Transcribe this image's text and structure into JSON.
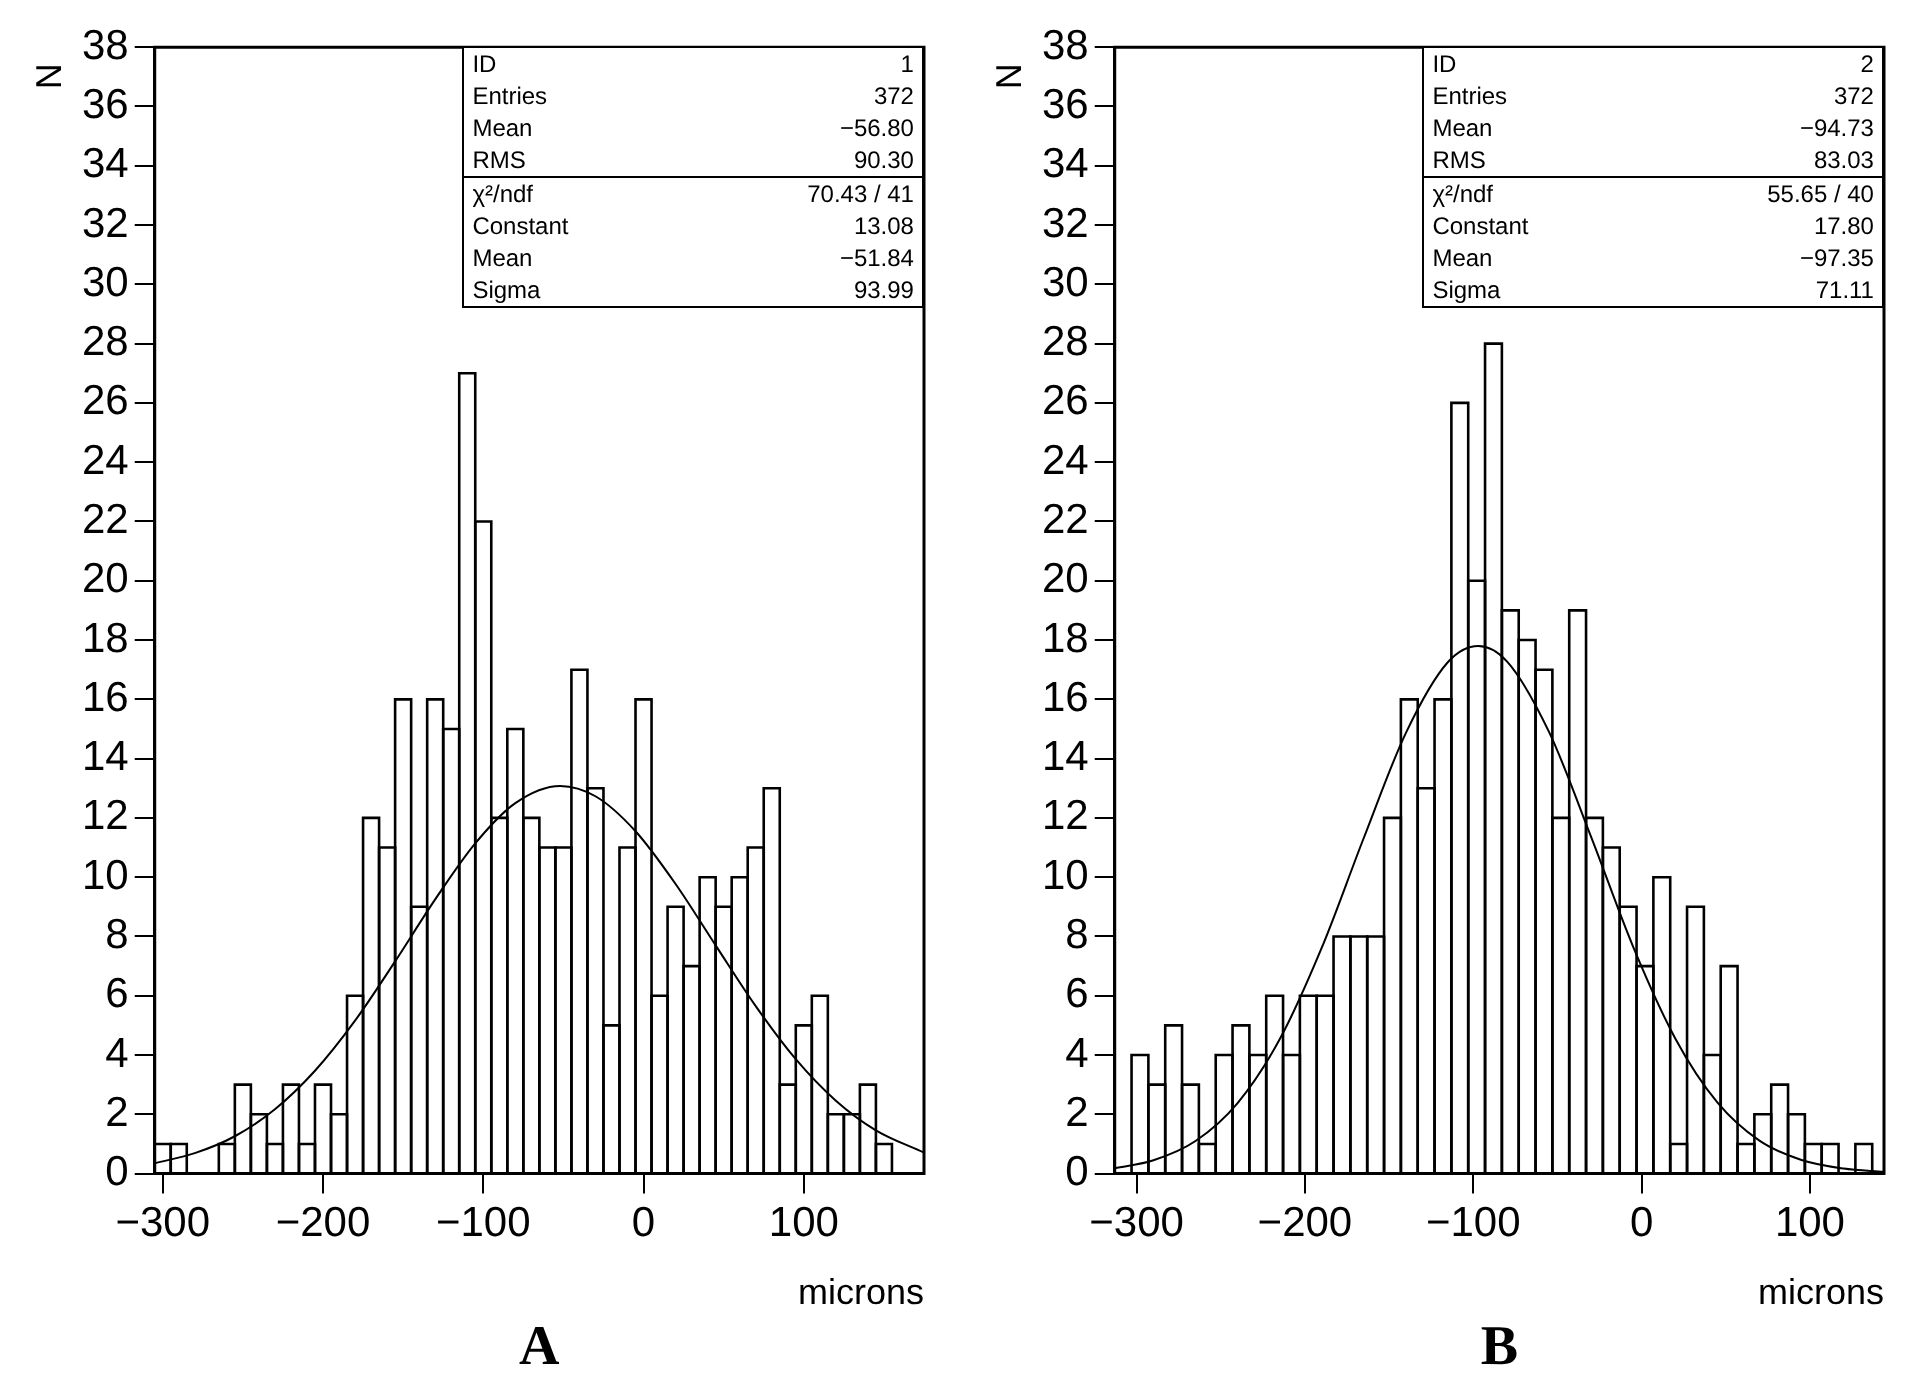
{
  "chart_data": [
    {
      "type": "histogram",
      "title": "A",
      "xlabel": "microns",
      "ylabel": "N",
      "color": "#000000",
      "bins": [
        -305,
        -295,
        -285,
        -275,
        -265,
        -255,
        -245,
        -235,
        -225,
        -215,
        -205,
        -195,
        -185,
        -175,
        -165,
        -155,
        -145,
        -135,
        -125,
        -115,
        -105,
        -95,
        -85,
        -75,
        -65,
        -55,
        -45,
        -35,
        -25,
        -15,
        -5,
        5,
        15,
        25,
        35,
        45,
        55,
        65,
        75,
        85,
        95,
        105,
        115,
        125,
        135,
        145,
        155,
        165,
        175
      ],
      "values": [
        1,
        1,
        0,
        0,
        1,
        3,
        2,
        1,
        3,
        1,
        3,
        2,
        6,
        12,
        11,
        16,
        9,
        16,
        15,
        27,
        22,
        12,
        15,
        12,
        11,
        11,
        17,
        13,
        5,
        11,
        16,
        6,
        9,
        7,
        10,
        9,
        10,
        11,
        13,
        3,
        5,
        6,
        2,
        2,
        3,
        1,
        0,
        0
      ],
      "series": [
        {
          "type": "line",
          "color": "#000000",
          "x": [
            -305,
            -280,
            -255,
            -230,
            -205,
            -180,
            -155,
            -130,
            -105,
            -80,
            -52,
            -30,
            -5,
            20,
            45,
            70,
            95,
            120,
            145,
            175
          ],
          "values": [
            0.35,
            0.69,
            1.26,
            2.17,
            3.47,
            5.16,
            7.16,
            9.25,
            11.14,
            12.5,
            13.08,
            12.73,
            11.55,
            9.77,
            7.7,
            5.65,
            3.86,
            2.46,
            1.46,
            0.71
          ]
        }
      ],
      "xlim": [
        -305,
        175
      ],
      "xticks": [
        -300,
        -200,
        -100,
        0,
        100
      ],
      "ylim": [
        0,
        38
      ],
      "yticks": [
        0,
        2,
        4,
        6,
        8,
        10,
        12,
        14,
        16,
        18,
        20,
        22,
        24,
        26,
        28,
        30,
        32,
        34,
        36,
        38
      ],
      "annotations": [
        "ID 1",
        "Entries 372",
        "Mean −56.80",
        "RMS 90.30",
        "χ²/ndf 70.43 / 41",
        "Constant 13.08",
        "Mean −51.84",
        "Sigma 93.99"
      ]
    },
    {
      "type": "histogram",
      "title": "B",
      "xlabel": "microns",
      "ylabel": "N",
      "color": "#000000",
      "bins": [
        -313,
        -303,
        -293,
        -283,
        -273,
        -263,
        -253,
        -243,
        -233,
        -223,
        -213,
        -203,
        -193,
        -183,
        -173,
        -163,
        -153,
        -143,
        -133,
        -123,
        -113,
        -103,
        -93,
        -83,
        -73,
        -63,
        -53,
        -43,
        -33,
        -23,
        -13,
        -3,
        7,
        17,
        27,
        37,
        47,
        57,
        67,
        77,
        87,
        97,
        107,
        117,
        127,
        137
      ],
      "values": [
        0,
        4,
        3,
        5,
        3,
        1,
        4,
        5,
        4,
        6,
        4,
        6,
        6,
        8,
        8,
        8,
        12,
        16,
        13,
        16,
        26,
        20,
        28,
        19,
        18,
        17,
        12,
        19,
        12,
        11,
        9,
        7,
        10,
        1,
        9,
        4,
        7,
        1,
        2,
        3,
        2,
        1,
        1,
        0,
        1
      ],
      "series": [
        {
          "type": "line",
          "color": "#000000",
          "x": [
            -313,
            -290,
            -265,
            -240,
            -215,
            -190,
            -165,
            -140,
            -115,
            -97,
            -80,
            -55,
            -30,
            -5,
            20,
            45,
            70,
            95,
            120,
            144
          ],
          "values": [
            0.18,
            0.45,
            1.1,
            2.38,
            4.53,
            7.62,
            11.33,
            14.87,
            17.26,
            17.8,
            17.28,
            14.9,
            11.36,
            7.65,
            4.56,
            2.4,
            1.11,
            0.46,
            0.17,
            0.06
          ]
        }
      ],
      "xlim": [
        -313,
        144
      ],
      "xticks": [
        -300,
        -200,
        -100,
        0,
        100
      ],
      "ylim": [
        0,
        38
      ],
      "yticks": [
        0,
        2,
        4,
        6,
        8,
        10,
        12,
        14,
        16,
        18,
        20,
        22,
        24,
        26,
        28,
        30,
        32,
        34,
        36,
        38
      ],
      "annotations": [
        "ID 2",
        "Entries 372",
        "Mean −94.73",
        "RMS 83.03",
        "χ²/ndf 55.65 / 40",
        "Constant 17.80",
        "Mean −97.35",
        "Sigma 71.11"
      ]
    }
  ]
}
